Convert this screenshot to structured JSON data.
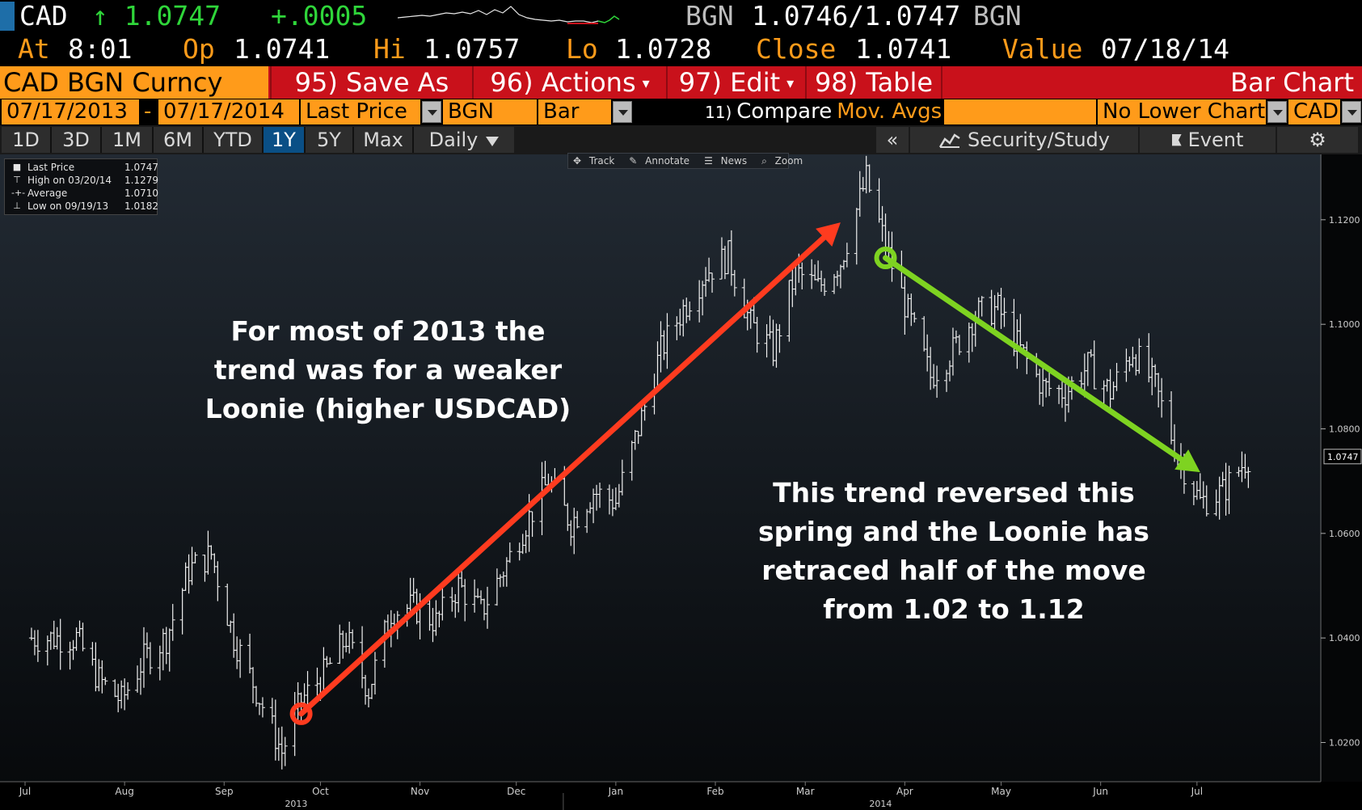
{
  "quote": {
    "symbol": "CAD",
    "last": "↑ 1.0747",
    "change": "+.0005",
    "source_left": "BGN",
    "bid_ask": "1.0746/1.0747",
    "source_right": "BGN",
    "at_label": "At",
    "at_value": "8:01",
    "op_label": "Op",
    "op_value": "1.0741",
    "hi_label": "Hi",
    "hi_value": "1.0757",
    "lo_label": "Lo",
    "lo_value": "1.0728",
    "close_label": "Close",
    "close_value": "1.0741",
    "value_label": "Value",
    "value_date": "07/18/14"
  },
  "toolbar": {
    "security": "CAD BGN Curncy",
    "save_as": "95) Save As",
    "actions": "96) Actions",
    "edit": "97) Edit",
    "table": "98) Table",
    "chart_type_title": "Bar Chart"
  },
  "params": {
    "start_date": "07/17/2013",
    "dash": "-",
    "end_date": "07/17/2014",
    "field": "Last Price",
    "source": "BGN",
    "style": "Bar",
    "compare_num": "11)",
    "compare": "Compare",
    "mov_avgs": "Mov. Avgs",
    "lower_chart": "No Lower Chart",
    "currency": "CAD"
  },
  "periods": [
    "1D",
    "3D",
    "1M",
    "6M",
    "YTD",
    "1Y",
    "5Y",
    "Max"
  ],
  "selected_period": "1Y",
  "nav": {
    "frequency": "Daily",
    "collapse": "«",
    "security_study": "Security/Study",
    "event": "Event",
    "settings_icon": "gear-icon"
  },
  "mini_toolbar": [
    "Track",
    "Annotate",
    "News",
    "Zoom"
  ],
  "legend": [
    {
      "name": "Last Price",
      "value": "1.0747",
      "icon": "square-icon"
    },
    {
      "name": "High on 03/20/14",
      "value": "1.1279",
      "icon": "high-marker-icon"
    },
    {
      "name": "Average",
      "value": "1.0710",
      "icon": "average-icon"
    },
    {
      "name": "Low on 09/19/13",
      "value": "1.0182",
      "icon": "low-marker-icon"
    }
  ],
  "annotations": {
    "left_lines": [
      "For most of 2013 the",
      "trend was for a weaker",
      "Loonie (higher USDCAD)"
    ],
    "right_lines": [
      "This trend reversed this",
      "spring and the Loonie has",
      "retraced half of the move",
      "from 1.02 to 1.12"
    ]
  },
  "colors": {
    "orange": "#ff9b1a",
    "red_toolbar": "#c9111b",
    "uptrend_arrow": "#ff3b1f",
    "downtrend_arrow": "#7ed321",
    "price_up": "#2fd63a",
    "selected_blue": "#0a4f86"
  },
  "chart_data": {
    "type": "bar",
    "title": "",
    "xlabel": "",
    "ylabel": "",
    "ylim": [
      1.0125,
      1.1325
    ],
    "y_ticks": [
      "1.0200",
      "1.0400",
      "1.0600",
      "1.0800",
      "1.1000",
      "1.1200"
    ],
    "x_months": [
      "Jul",
      "Aug",
      "Sep",
      "Oct",
      "Nov",
      "Dec",
      "Jan",
      "Feb",
      "Mar",
      "Apr",
      "May",
      "Jun",
      "Jul"
    ],
    "x_years": [
      "2013",
      "2014"
    ],
    "last_price_label": "1.0747",
    "grid": false,
    "legend_position": "top-left",
    "series": [
      {
        "x": [
          "2013-07-17",
          "2013-07-24",
          "2013-07-31",
          "2013-08-07",
          "2013-08-14",
          "2013-08-21",
          "2013-08-28",
          "2013-09-04",
          "2013-09-11",
          "2013-09-19",
          "2013-09-25",
          "2013-10-02",
          "2013-10-09",
          "2013-10-16",
          "2013-10-23",
          "2013-10-30",
          "2013-11-06",
          "2013-11-13",
          "2013-11-20",
          "2013-11-27",
          "2013-12-04",
          "2013-12-11",
          "2013-12-18",
          "2013-12-25",
          "2014-01-01",
          "2014-01-08",
          "2014-01-15",
          "2014-01-22",
          "2014-01-29",
          "2014-02-05",
          "2014-02-12",
          "2014-02-19",
          "2014-02-26",
          "2014-03-05",
          "2014-03-12",
          "2014-03-20",
          "2014-03-26",
          "2014-04-02",
          "2014-04-09",
          "2014-04-16",
          "2014-04-23",
          "2014-04-30",
          "2014-05-07",
          "2014-05-14",
          "2014-05-21",
          "2014-05-28",
          "2014-06-04",
          "2014-06-11",
          "2014-06-18",
          "2014-06-25",
          "2014-07-02",
          "2014-07-09",
          "2014-07-17"
        ],
        "values": [
          1.04,
          1.032,
          1.028,
          1.036,
          1.04,
          1.053,
          1.056,
          1.04,
          1.03,
          1.0182,
          1.028,
          1.033,
          1.04,
          1.03,
          1.045,
          1.046,
          1.043,
          1.05,
          1.045,
          1.053,
          1.062,
          1.07,
          1.062,
          1.068,
          1.066,
          1.08,
          1.095,
          1.103,
          1.11,
          1.113,
          1.1,
          1.095,
          1.11,
          1.107,
          1.112,
          1.1279,
          1.115,
          1.102,
          1.09,
          1.095,
          1.102,
          1.103,
          1.095,
          1.088,
          1.087,
          1.092,
          1.087,
          1.095,
          1.088,
          1.075,
          1.066,
          1.068,
          1.0747
        ]
      }
    ],
    "trend_lines": [
      {
        "from": {
          "x": "2013-09-25",
          "y": 1.0255
        },
        "to": {
          "x": "2014-03-12",
          "y": 1.1195
        },
        "color": "#ff3b1f"
      },
      {
        "from": {
          "x": "2014-03-26",
          "y": 1.1127
        },
        "to": {
          "x": "2014-07-02",
          "y": 1.0717
        },
        "color": "#7ed321"
      }
    ]
  }
}
